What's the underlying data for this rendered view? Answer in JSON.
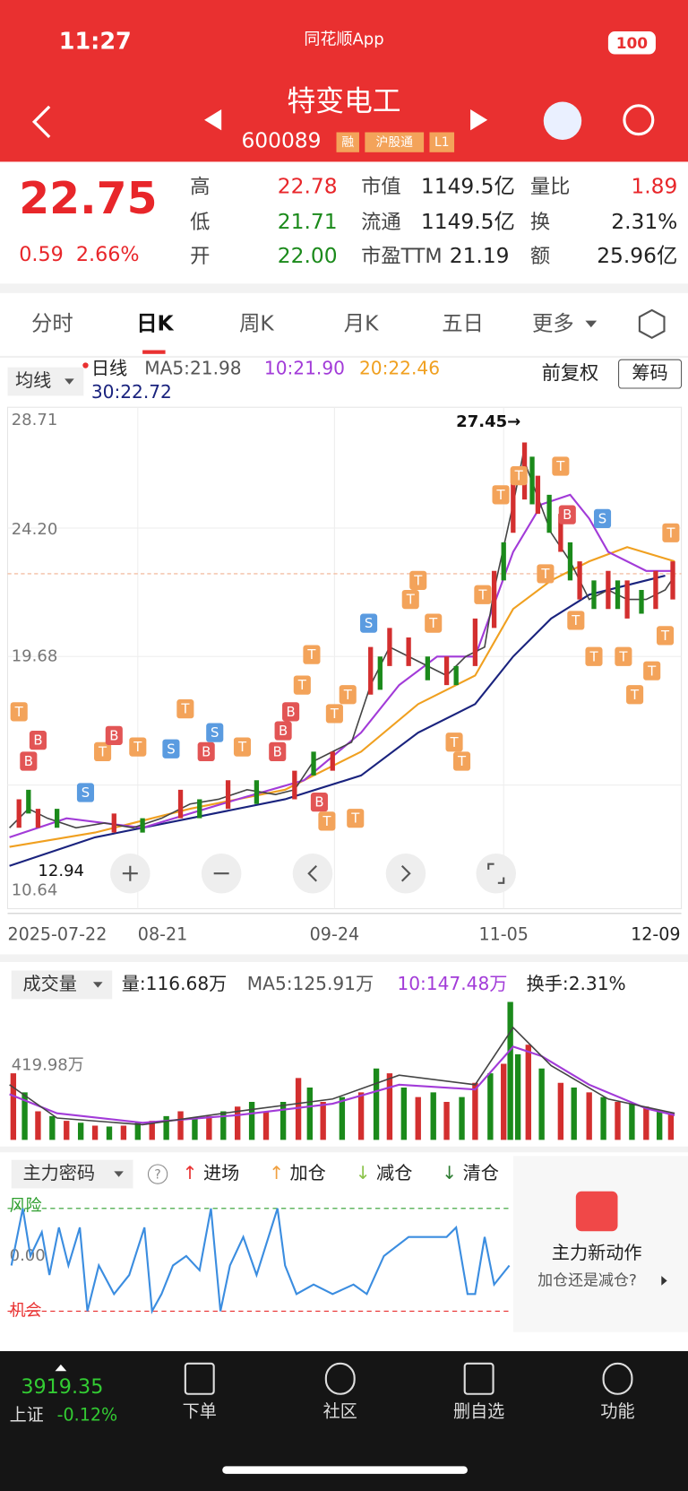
{
  "status_bar": {
    "time": "11:27",
    "app": "同花顺App",
    "battery": "100"
  },
  "header": {
    "title": "特变电工",
    "code": "600089",
    "tags": [
      "融",
      "沪股通",
      "L1"
    ]
  },
  "quote": {
    "price": "22.75",
    "change": "0.59",
    "change_pct": "2.66%",
    "fields": [
      [
        {
          "label": "高",
          "value": "22.78"
        },
        {
          "label": "市值",
          "value": "1149.5亿"
        },
        {
          "label": "量比",
          "value": "1.89"
        }
      ],
      [
        {
          "label": "低",
          "value": "21.71"
        },
        {
          "label": "流通",
          "value": "1149.5亿"
        },
        {
          "label": "换",
          "value": "2.31%"
        }
      ],
      [
        {
          "label": "开",
          "value": "22.00"
        },
        {
          "label": "市盈TTM",
          "value": "21.19"
        },
        {
          "label": "额",
          "value": "25.96亿"
        }
      ]
    ]
  },
  "tabs": [
    "分时",
    "日K",
    "周K",
    "月K",
    "五日",
    "更多"
  ],
  "indicators": {
    "selector": "均线",
    "line": "日线",
    "ma5": "MA5:21.98",
    "ma10": "10:21.90",
    "ma20": "20:22.46",
    "ma30": "30:22.72",
    "adjust": "前复权",
    "chips": "筹码"
  },
  "price_chart": {
    "y_labels": [
      "28.71",
      "24.20",
      "19.68",
      "10.64"
    ],
    "high_note": "27.45→",
    "low_note": "12.94",
    "dates": [
      "2025-07-22",
      "08-21",
      "09-24",
      "11-05",
      "12-09"
    ],
    "markers": {
      "buy": "B",
      "sell": "S",
      "t": "T"
    }
  },
  "volume": {
    "selector": "成交量",
    "vol": "量:116.68万",
    "ma5": "MA5:125.91万",
    "ma10": "10:147.48万",
    "turnover": "换手:2.31%",
    "max_label": "419.98万"
  },
  "main_force": {
    "selector": "主力密码",
    "help": "?",
    "legend": [
      "进场",
      "加仓",
      "减仓",
      "清仓"
    ],
    "risk": "风险",
    "zero": "0.00",
    "chance": "机会",
    "promo_title": "主力新动作",
    "promo_sub": "加仓还是减仓?"
  },
  "bottom_bar": {
    "index_value": "3919.35",
    "index_name": "上证",
    "index_change": "-0.12%",
    "items": [
      "下单",
      "社区",
      "删自选",
      "功能"
    ]
  }
}
